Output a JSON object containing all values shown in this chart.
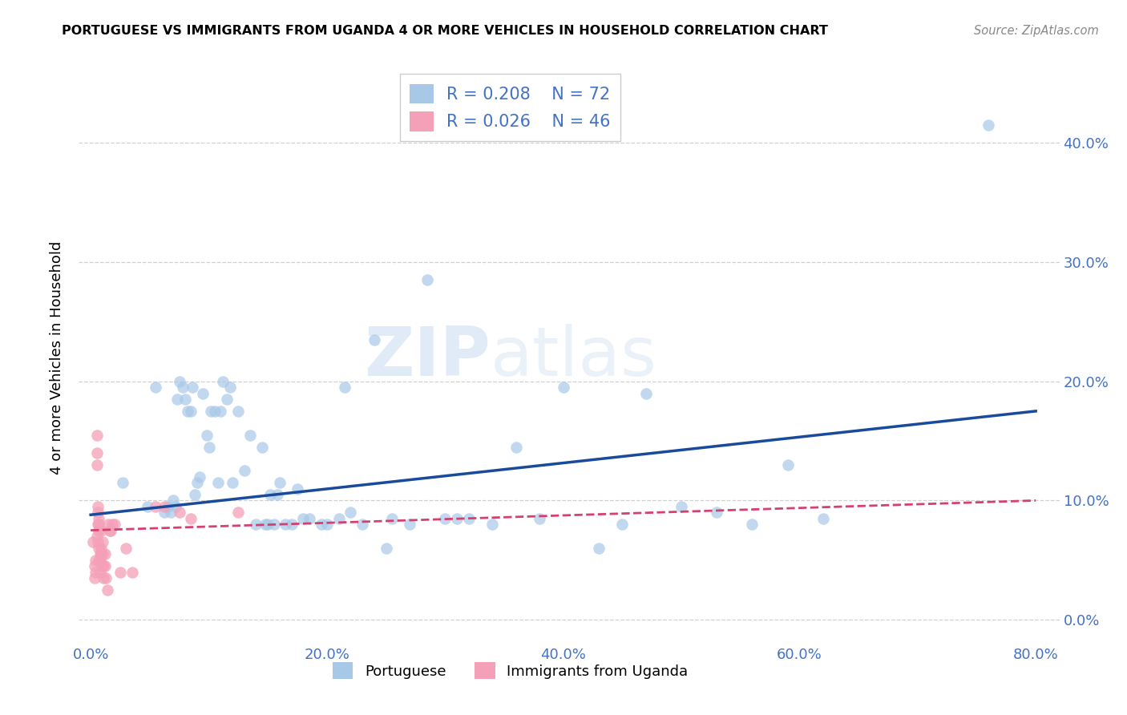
{
  "title": "PORTUGUESE VS IMMIGRANTS FROM UGANDA 4 OR MORE VEHICLES IN HOUSEHOLD CORRELATION CHART",
  "source": "Source: ZipAtlas.com",
  "label_color": "#4472c4",
  "ylabel": "4 or more Vehicles in Household",
  "xlim": [
    -0.01,
    0.82
  ],
  "ylim": [
    -0.02,
    0.46
  ],
  "legend_R1": "0.208",
  "legend_N1": "72",
  "legend_R2": "0.026",
  "legend_N2": "46",
  "blue_color": "#a8c8e8",
  "blue_line_color": "#1a4a9c",
  "pink_color": "#f4a0b8",
  "pink_line_color": "#d44070",
  "watermark_text": "ZIPatlas",
  "blue_scatter_x": [
    0.027,
    0.048,
    0.055,
    0.062,
    0.065,
    0.068,
    0.07,
    0.072,
    0.073,
    0.075,
    0.078,
    0.08,
    0.082,
    0.085,
    0.086,
    0.088,
    0.09,
    0.092,
    0.095,
    0.098,
    0.1,
    0.102,
    0.105,
    0.108,
    0.11,
    0.112,
    0.115,
    0.118,
    0.12,
    0.125,
    0.13,
    0.135,
    0.14,
    0.145,
    0.148,
    0.15,
    0.152,
    0.155,
    0.158,
    0.16,
    0.165,
    0.17,
    0.175,
    0.18,
    0.185,
    0.195,
    0.2,
    0.21,
    0.215,
    0.22,
    0.23,
    0.24,
    0.25,
    0.255,
    0.27,
    0.285,
    0.3,
    0.31,
    0.32,
    0.34,
    0.36,
    0.38,
    0.4,
    0.43,
    0.45,
    0.47,
    0.5,
    0.53,
    0.56,
    0.59,
    0.62,
    0.76
  ],
  "blue_scatter_y": [
    0.115,
    0.095,
    0.195,
    0.09,
    0.095,
    0.09,
    0.1,
    0.095,
    0.185,
    0.2,
    0.195,
    0.185,
    0.175,
    0.175,
    0.195,
    0.105,
    0.115,
    0.12,
    0.19,
    0.155,
    0.145,
    0.175,
    0.175,
    0.115,
    0.175,
    0.2,
    0.185,
    0.195,
    0.115,
    0.175,
    0.125,
    0.155,
    0.08,
    0.145,
    0.08,
    0.08,
    0.105,
    0.08,
    0.105,
    0.115,
    0.08,
    0.08,
    0.11,
    0.085,
    0.085,
    0.08,
    0.08,
    0.085,
    0.195,
    0.09,
    0.08,
    0.235,
    0.06,
    0.085,
    0.08,
    0.285,
    0.085,
    0.085,
    0.085,
    0.08,
    0.145,
    0.085,
    0.195,
    0.06,
    0.08,
    0.19,
    0.095,
    0.09,
    0.08,
    0.13,
    0.085,
    0.415
  ],
  "pink_scatter_x": [
    0.002,
    0.003,
    0.003,
    0.004,
    0.004,
    0.005,
    0.005,
    0.005,
    0.005,
    0.006,
    0.006,
    0.006,
    0.006,
    0.007,
    0.007,
    0.007,
    0.007,
    0.007,
    0.008,
    0.008,
    0.008,
    0.009,
    0.009,
    0.009,
    0.01,
    0.01,
    0.01,
    0.011,
    0.011,
    0.012,
    0.012,
    0.013,
    0.014,
    0.015,
    0.016,
    0.017,
    0.018,
    0.02,
    0.025,
    0.03,
    0.035,
    0.055,
    0.062,
    0.075,
    0.085,
    0.125
  ],
  "pink_scatter_y": [
    0.065,
    0.045,
    0.035,
    0.05,
    0.04,
    0.155,
    0.14,
    0.13,
    0.07,
    0.095,
    0.09,
    0.08,
    0.065,
    0.085,
    0.08,
    0.075,
    0.06,
    0.05,
    0.055,
    0.05,
    0.04,
    0.075,
    0.06,
    0.055,
    0.065,
    0.055,
    0.045,
    0.045,
    0.035,
    0.055,
    0.045,
    0.035,
    0.025,
    0.08,
    0.075,
    0.075,
    0.08,
    0.08,
    0.04,
    0.06,
    0.04,
    0.095,
    0.095,
    0.09,
    0.085,
    0.09
  ],
  "blue_trend_x0": 0.0,
  "blue_trend_x1": 0.8,
  "blue_trend_y0": 0.088,
  "blue_trend_y1": 0.175,
  "pink_trend_x0": 0.0,
  "pink_trend_x1": 0.8,
  "pink_trend_y0": 0.075,
  "pink_trend_y1": 0.1,
  "background_color": "#ffffff",
  "grid_color": "#d0d0d0",
  "xtick_positions": [
    0.0,
    0.2,
    0.4,
    0.6,
    0.8
  ],
  "ytick_positions": [
    0.0,
    0.1,
    0.2,
    0.3,
    0.4
  ]
}
